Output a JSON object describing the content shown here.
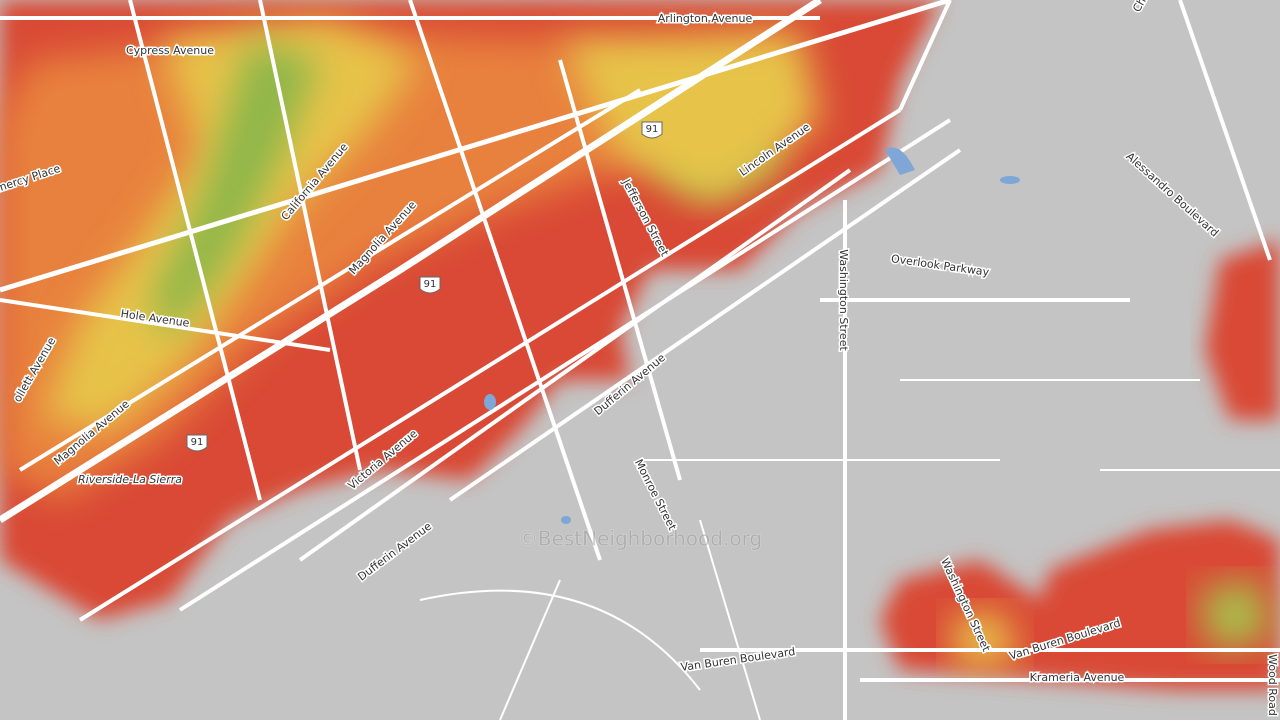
{
  "labels": [
    "Arlington Avenue",
    "Cypress Avenue",
    "emercy Place",
    "California Avenue",
    "Magnolia Avenue",
    "Jefferson Street",
    "Lincoln Avenue",
    "Overlook Parkway",
    "Washington Street",
    "Alessandro Boulevard",
    "Hole Avenue",
    "ollett Avenue",
    "Magnolia Avenue",
    "Riverside-La Sierra",
    "Victoria Avenue",
    "Dufferin Avenue",
    "Monroe Street",
    "Dufferin Avenue",
    "Washington Street",
    "Van Buren Boulevard",
    "Van Buren Boulevard",
    "Krameria Avenue",
    "Wood Road",
    "Ch"
  ],
  "shields": [
    "91",
    "91",
    "91"
  ],
  "watermark": "©BestNeighborhood.org"
}
